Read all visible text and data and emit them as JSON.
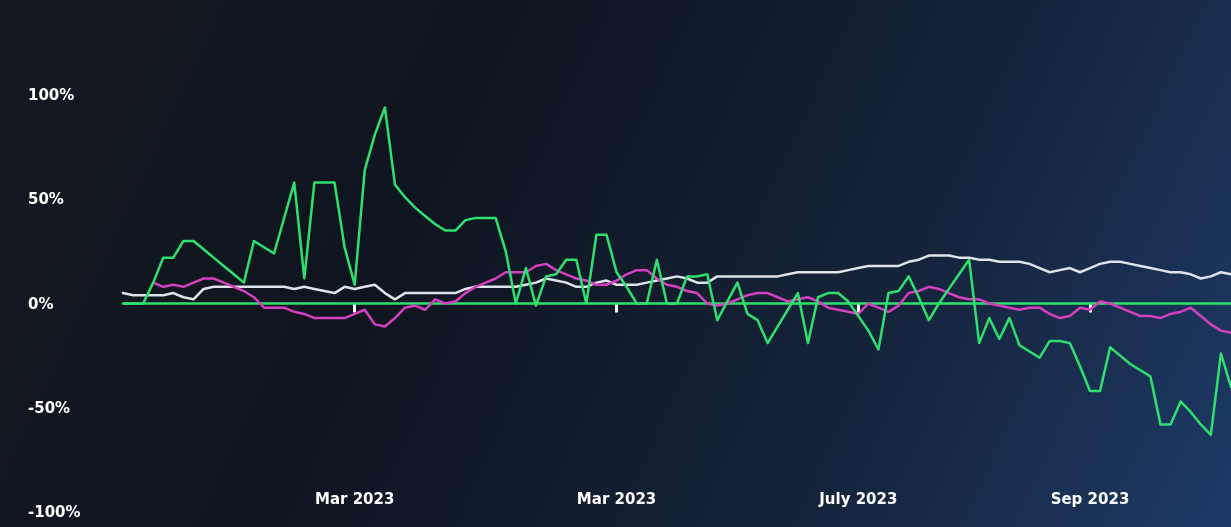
{
  "chart_data": {
    "type": "line",
    "categories": [
      null,
      null,
      null,
      null,
      null,
      null,
      null,
      null,
      null,
      null,
      null,
      null,
      null,
      null,
      null,
      null,
      null,
      null,
      null,
      null,
      null,
      null,
      null,
      "Mar 2023",
      null,
      null,
      null,
      null,
      null,
      null,
      null,
      null,
      null,
      null,
      null,
      null,
      null,
      null,
      null,
      null,
      null,
      null,
      null,
      null,
      null,
      null,
      null,
      null,
      null,
      "Mar 2023",
      null,
      null,
      null,
      null,
      null,
      null,
      null,
      null,
      null,
      null,
      null,
      null,
      null,
      null,
      null,
      null,
      null,
      null,
      null,
      null,
      null,
      null,
      null,
      "July 2023",
      null,
      null,
      null,
      null,
      null,
      null,
      null,
      null,
      null,
      null,
      null,
      null,
      null,
      null,
      null,
      null,
      null,
      null,
      null,
      null,
      null,
      null,
      "Sep 2023",
      null,
      null,
      null,
      null,
      null,
      null,
      null,
      null,
      null,
      null,
      null,
      null,
      null,
      null
    ],
    "ylim": [
      -100,
      100
    ],
    "yticks": [
      {
        "value": -100,
        "label": "-100%"
      },
      {
        "value": -50,
        "label": "-50%"
      },
      {
        "value": 0,
        "label": "0%"
      },
      {
        "value": 50,
        "label": "50%"
      },
      {
        "value": 100,
        "label": "100%"
      }
    ],
    "grid": false,
    "marker": "none",
    "line_style": "solid",
    "ref_lines": [
      {
        "axis": "y",
        "value": 0,
        "color": "#2ee06e"
      }
    ],
    "series": [
      {
        "color": "#dfe3ea",
        "values": [
          5,
          4,
          4,
          4,
          4,
          5,
          3,
          2,
          7,
          8,
          8,
          8,
          8,
          8,
          8,
          8,
          8,
          7,
          8,
          7,
          6,
          5,
          8,
          7,
          8,
          9,
          5,
          2,
          5,
          5,
          5,
          5,
          5,
          5,
          7,
          8,
          8,
          8,
          8,
          8,
          9,
          10,
          12,
          11,
          10,
          8,
          8,
          10,
          11,
          9,
          9,
          9,
          10,
          11,
          12,
          13,
          12,
          10,
          10,
          13,
          13,
          13,
          13,
          13,
          13,
          13,
          14,
          15,
          15,
          15,
          15,
          15,
          16,
          17,
          18,
          18,
          18,
          18,
          20,
          21,
          23,
          23,
          23,
          22,
          22,
          21,
          21,
          20,
          20,
          20,
          19,
          17,
          15,
          16,
          17,
          15,
          17,
          19,
          20,
          20,
          19,
          18,
          17,
          16,
          15,
          15,
          14,
          12,
          13,
          15,
          14
        ]
      },
      {
        "color": "#d63fbf",
        "values": [
          null,
          null,
          null,
          10,
          8,
          9,
          8,
          10,
          12,
          12,
          10,
          8,
          6,
          3,
          -2,
          -2,
          -2,
          -4,
          -5,
          -7,
          -7,
          -7,
          -7,
          -5,
          -3,
          -10,
          -11,
          -7,
          -2,
          -1,
          -3,
          2,
          0,
          1,
          5,
          8,
          10,
          12,
          15,
          15,
          15,
          18,
          19,
          16,
          14,
          12,
          11,
          9,
          9,
          11,
          14,
          16,
          16,
          12,
          9,
          8,
          6,
          5,
          0,
          -1,
          0,
          2,
          4,
          5,
          5,
          3,
          1,
          2,
          3,
          1,
          -2,
          -3,
          -4,
          -5,
          0,
          -2,
          -4,
          -1,
          5,
          6,
          8,
          7,
          5,
          3,
          2,
          2,
          0,
          -1,
          -2,
          -3,
          -2,
          -2,
          -5,
          -7,
          -6,
          -2,
          -3,
          1,
          0,
          -2,
          -4,
          -6,
          -6,
          -7,
          -5,
          -4,
          -2,
          -6,
          -10,
          -13,
          -14
        ]
      },
      {
        "color": "#2ee06e",
        "values": [
          0,
          0,
          0,
          10,
          22,
          22,
          30,
          30,
          26,
          22,
          18,
          14,
          10,
          30,
          27,
          24,
          41,
          58,
          12,
          58,
          58,
          58,
          27,
          9,
          64,
          81,
          94,
          57,
          51,
          46,
          42,
          38,
          35,
          35,
          40,
          41,
          41,
          41,
          25,
          0,
          17,
          -1,
          13,
          14,
          21,
          21,
          0,
          33,
          33,
          15,
          8,
          0,
          0,
          21,
          0,
          0,
          13,
          13,
          14,
          -8,
          1,
          10,
          -5,
          -8,
          -19,
          -11,
          -3,
          5,
          -19,
          3,
          5,
          5,
          1,
          -6,
          -13,
          -22,
          5,
          6,
          13,
          3,
          -8,
          0,
          7,
          14,
          21,
          -19,
          -7,
          -17,
          -7,
          -20,
          -23,
          -26,
          -18,
          -18,
          -19,
          -30,
          -42,
          -42,
          -21,
          -25,
          -29,
          -32,
          -35,
          -58,
          -58,
          -47,
          -52,
          -58,
          -63,
          -24,
          -40
        ]
      }
    ]
  }
}
